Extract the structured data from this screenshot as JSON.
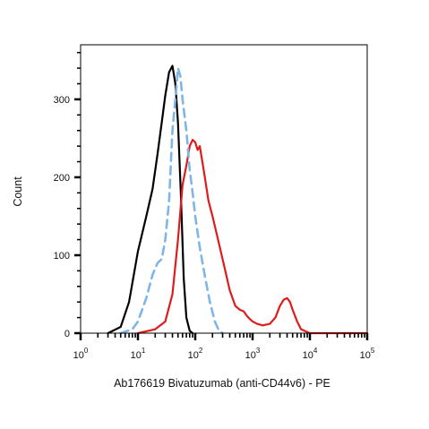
{
  "chart_data": {
    "type": "line",
    "title": "",
    "xlabel": "Ab176619 Bivatuzumab (anti-CD44v6) - PE",
    "ylabel": "Count",
    "x_scale": "log",
    "xlim": [
      1,
      100000
    ],
    "ylim": [
      0,
      350
    ],
    "x_ticks": [
      {
        "base": "10",
        "exp": "0",
        "value": 1
      },
      {
        "base": "10",
        "exp": "1",
        "value": 10
      },
      {
        "base": "10",
        "exp": "2",
        "value": 100
      },
      {
        "base": "10",
        "exp": "3",
        "value": 1000
      },
      {
        "base": "10",
        "exp": "4",
        "value": 10000
      },
      {
        "base": "10",
        "exp": "5",
        "value": 100000
      }
    ],
    "y_ticks": [
      {
        "label": "0",
        "value": 0
      },
      {
        "label": "100",
        "value": 100
      },
      {
        "label": "200",
        "value": 200
      },
      {
        "label": "300",
        "value": 300
      }
    ],
    "grid": false,
    "legend": "none",
    "series": [
      {
        "color": "#000000",
        "style": "solid",
        "x": [
          3,
          5,
          7,
          10,
          14,
          18,
          22,
          26,
          30,
          35,
          40,
          45,
          50,
          56,
          63,
          70,
          80,
          90
        ],
        "y": [
          0,
          8,
          40,
          105,
          150,
          185,
          230,
          270,
          305,
          335,
          343,
          320,
          270,
          180,
          70,
          20,
          3,
          0
        ]
      },
      {
        "color": "#e01b1b",
        "style": "solid",
        "x": [
          10,
          20,
          30,
          40,
          50,
          60,
          70,
          80,
          90,
          100,
          110,
          120,
          140,
          170,
          200,
          250,
          300,
          400,
          500,
          600,
          700,
          800,
          900,
          1000,
          1200,
          1500,
          2000,
          2500,
          3000,
          3500,
          4000,
          4500,
          5000,
          6000,
          7000,
          10000,
          100000
        ],
        "y": [
          0,
          5,
          15,
          50,
          120,
          190,
          215,
          240,
          248,
          245,
          235,
          240,
          210,
          170,
          150,
          120,
          95,
          55,
          35,
          30,
          28,
          22,
          18,
          15,
          12,
          10,
          12,
          20,
          35,
          43,
          45,
          40,
          30,
          15,
          5,
          0,
          0
        ]
      },
      {
        "color": "#7fb6e6",
        "style": "dashed",
        "x": [
          5,
          8,
          10,
          14,
          18,
          22,
          26,
          30,
          35,
          40,
          45,
          50,
          55,
          60,
          70,
          80,
          90,
          100,
          120,
          150,
          180,
          220,
          260,
          300
        ],
        "y": [
          0,
          5,
          15,
          45,
          75,
          90,
          95,
          120,
          170,
          260,
          300,
          340,
          330,
          300,
          260,
          210,
          180,
          150,
          110,
          70,
          40,
          15,
          3,
          0
        ]
      }
    ]
  }
}
